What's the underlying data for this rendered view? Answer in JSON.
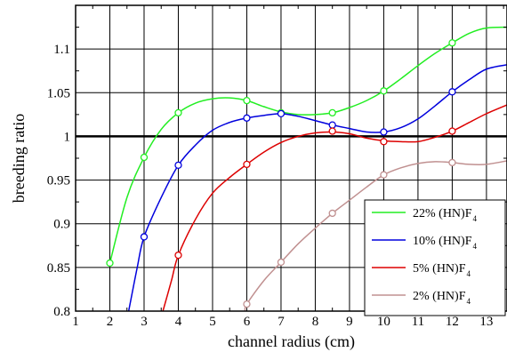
{
  "chart_data": {
    "type": "line",
    "title": "",
    "xlabel": "channel radius (cm)",
    "ylabel": "breeding ratio",
    "xlim": [
      1,
      13.6
    ],
    "ylim": [
      0.8,
      1.15
    ],
    "grid": true,
    "reference_line": 1,
    "x_ticks": [
      "1",
      "2",
      "3",
      "4",
      "5",
      "6",
      "7",
      "8",
      "9",
      "10",
      "11",
      "12",
      "13"
    ],
    "y_ticks": [
      "0.8",
      "0.85",
      "0.9",
      "0.95",
      "1",
      "1.05",
      "1.1"
    ],
    "legend_position": "bottom-right",
    "series": [
      {
        "name": "22% (HN)F",
        "name_subscript": "4",
        "color": "#22ee22",
        "points": [
          [
            2,
            0.855
          ],
          [
            3,
            0.976
          ],
          [
            4,
            1.027
          ],
          [
            6,
            1.041
          ],
          [
            7,
            1.027
          ],
          [
            8.5,
            1.027
          ],
          [
            10,
            1.052
          ],
          [
            12,
            1.107
          ]
        ],
        "curve": [
          [
            2,
            0.855
          ],
          [
            2.5,
            0.93
          ],
          [
            3,
            0.976
          ],
          [
            3.5,
            1.008
          ],
          [
            4,
            1.027
          ],
          [
            4.5,
            1.038
          ],
          [
            5,
            1.043
          ],
          [
            5.5,
            1.044
          ],
          [
            6,
            1.041
          ],
          [
            6.5,
            1.034
          ],
          [
            7,
            1.028
          ],
          [
            7.5,
            1.025
          ],
          [
            8,
            1.025
          ],
          [
            8.5,
            1.027
          ],
          [
            9,
            1.033
          ],
          [
            9.5,
            1.041
          ],
          [
            10,
            1.052
          ],
          [
            10.5,
            1.066
          ],
          [
            11,
            1.081
          ],
          [
            11.5,
            1.095
          ],
          [
            12,
            1.107
          ],
          [
            12.5,
            1.118
          ],
          [
            13,
            1.124
          ],
          [
            13.6,
            1.125
          ]
        ]
      },
      {
        "name": "10% (HN)F",
        "name_subscript": "4",
        "color": "#0000dd",
        "points": [
          [
            3,
            0.885
          ],
          [
            4,
            0.967
          ],
          [
            6,
            1.021
          ],
          [
            7,
            1.026
          ],
          [
            8.5,
            1.013
          ],
          [
            10,
            1.005
          ],
          [
            12,
            1.051
          ]
        ],
        "curve": [
          [
            2.55,
            0.8
          ],
          [
            2.8,
            0.85
          ],
          [
            3,
            0.885
          ],
          [
            3.5,
            0.93
          ],
          [
            4,
            0.967
          ],
          [
            4.5,
            0.99
          ],
          [
            5,
            1.007
          ],
          [
            5.5,
            1.016
          ],
          [
            6,
            1.021
          ],
          [
            6.5,
            1.024
          ],
          [
            7,
            1.026
          ],
          [
            7.5,
            1.023
          ],
          [
            8,
            1.018
          ],
          [
            8.5,
            1.013
          ],
          [
            9,
            1.009
          ],
          [
            9.5,
            1.005
          ],
          [
            10,
            1.005
          ],
          [
            10.5,
            1.01
          ],
          [
            11,
            1.02
          ],
          [
            11.5,
            1.035
          ],
          [
            12,
            1.051
          ],
          [
            12.5,
            1.065
          ],
          [
            13,
            1.077
          ],
          [
            13.6,
            1.082
          ]
        ]
      },
      {
        "name": "5% (HN)F",
        "name_subscript": "4",
        "color": "#dd0000",
        "points": [
          [
            4,
            0.864
          ],
          [
            6,
            0.968
          ],
          [
            8.5,
            1.006
          ],
          [
            10,
            0.994
          ],
          [
            12,
            1.006
          ]
        ],
        "curve": [
          [
            3.55,
            0.8
          ],
          [
            3.8,
            0.835
          ],
          [
            4,
            0.864
          ],
          [
            4.5,
            0.905
          ],
          [
            5,
            0.935
          ],
          [
            5.5,
            0.953
          ],
          [
            6,
            0.968
          ],
          [
            6.5,
            0.982
          ],
          [
            7,
            0.993
          ],
          [
            7.5,
            1.0
          ],
          [
            8,
            1.004
          ],
          [
            8.5,
            1.005
          ],
          [
            9,
            1.003
          ],
          [
            9.5,
            0.998
          ],
          [
            10,
            0.995
          ],
          [
            10.5,
            0.994
          ],
          [
            11,
            0.994
          ],
          [
            11.5,
            0.999
          ],
          [
            12,
            1.006
          ],
          [
            12.5,
            1.016
          ],
          [
            13,
            1.026
          ],
          [
            13.6,
            1.036
          ]
        ]
      },
      {
        "name": "2% (HN)F",
        "name_subscript": "4",
        "color": "#c09090",
        "points": [
          [
            6,
            0.808
          ],
          [
            7,
            0.856
          ],
          [
            8.5,
            0.912
          ],
          [
            10,
            0.956
          ],
          [
            12,
            0.97
          ]
        ],
        "curve": [
          [
            5.95,
            0.8
          ],
          [
            6,
            0.808
          ],
          [
            6.5,
            0.835
          ],
          [
            7,
            0.856
          ],
          [
            7.5,
            0.877
          ],
          [
            8,
            0.895
          ],
          [
            8.5,
            0.912
          ],
          [
            9,
            0.927
          ],
          [
            9.5,
            0.942
          ],
          [
            10,
            0.956
          ],
          [
            10.5,
            0.964
          ],
          [
            11,
            0.969
          ],
          [
            11.5,
            0.971
          ],
          [
            12,
            0.97
          ],
          [
            12.5,
            0.968
          ],
          [
            13,
            0.968
          ],
          [
            13.6,
            0.972
          ]
        ]
      }
    ]
  }
}
